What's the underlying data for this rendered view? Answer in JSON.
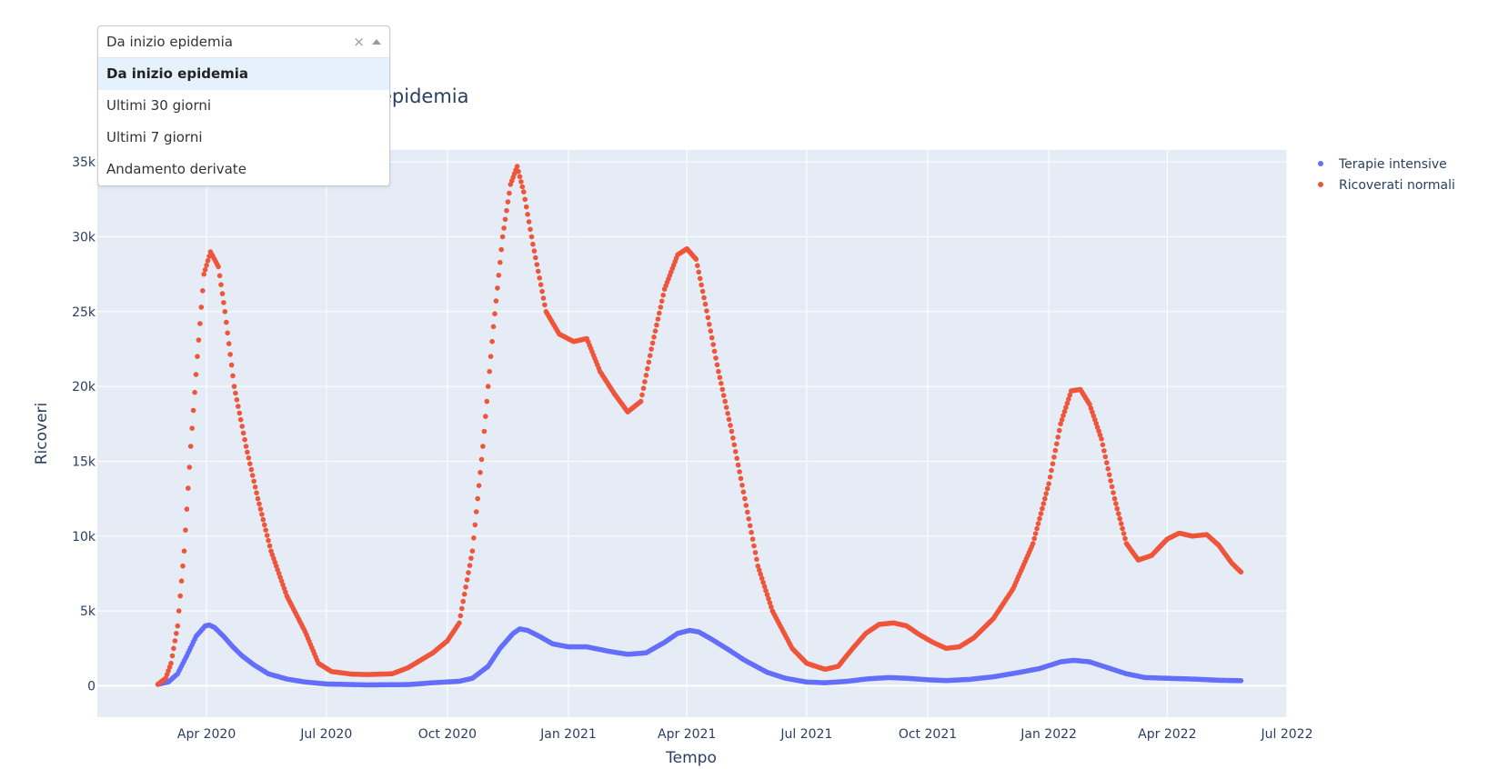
{
  "dropdown": {
    "value": "Da inizio epidemia",
    "clear_glyph": "×",
    "options": [
      "Da inizio epidemia",
      "Ultimi 30 giorni",
      "Ultimi 7 giorni",
      "Andamento derivate"
    ],
    "selected_index": 0
  },
  "chart_data": {
    "type": "scatter",
    "title": "epidemia",
    "xlabel": "Tempo",
    "ylabel": "Ricoveri",
    "x_range": [
      "2020-01-09",
      "2022-07-01"
    ],
    "ylim": [
      -2100,
      35800
    ],
    "x_ticks": [
      {
        "date": "2020-04-01",
        "label": "Apr 2020"
      },
      {
        "date": "2020-07-01",
        "label": "Jul 2020"
      },
      {
        "date": "2020-10-01",
        "label": "Oct 2020"
      },
      {
        "date": "2021-01-01",
        "label": "Jan 2021"
      },
      {
        "date": "2021-04-01",
        "label": "Apr 2021"
      },
      {
        "date": "2021-07-01",
        "label": "Jul 2021"
      },
      {
        "date": "2021-10-01",
        "label": "Oct 2021"
      },
      {
        "date": "2022-01-01",
        "label": "Jan 2022"
      },
      {
        "date": "2022-04-01",
        "label": "Apr 2022"
      },
      {
        "date": "2022-07-01",
        "label": "Jul 2022"
      }
    ],
    "y_ticks": [
      {
        "value": 0,
        "label": "0"
      },
      {
        "value": 5000,
        "label": "5k"
      },
      {
        "value": 10000,
        "label": "10k"
      },
      {
        "value": 15000,
        "label": "15k"
      },
      {
        "value": 20000,
        "label": "20k"
      },
      {
        "value": 25000,
        "label": "25k"
      },
      {
        "value": 30000,
        "label": "30k"
      },
      {
        "value": 35000,
        "label": "35k"
      }
    ],
    "grid": true,
    "legend_position": "top-right",
    "series": [
      {
        "name": "Terapie intensive",
        "color": "#636efa",
        "points": [
          [
            "2020-02-24",
            100
          ],
          [
            "2020-03-03",
            250
          ],
          [
            "2020-03-10",
            800
          ],
          [
            "2020-03-17",
            2000
          ],
          [
            "2020-03-24",
            3300
          ],
          [
            "2020-03-31",
            4000
          ],
          [
            "2020-04-03",
            4060
          ],
          [
            "2020-04-07",
            3900
          ],
          [
            "2020-04-14",
            3300
          ],
          [
            "2020-04-21",
            2600
          ],
          [
            "2020-04-28",
            2000
          ],
          [
            "2020-05-07",
            1400
          ],
          [
            "2020-05-18",
            800
          ],
          [
            "2020-06-01",
            450
          ],
          [
            "2020-06-15",
            250
          ],
          [
            "2020-07-01",
            120
          ],
          [
            "2020-08-01",
            60
          ],
          [
            "2020-09-01",
            80
          ],
          [
            "2020-09-20",
            200
          ],
          [
            "2020-10-10",
            300
          ],
          [
            "2020-10-20",
            500
          ],
          [
            "2020-11-01",
            1300
          ],
          [
            "2020-11-10",
            2500
          ],
          [
            "2020-11-20",
            3500
          ],
          [
            "2020-11-25",
            3800
          ],
          [
            "2020-12-01",
            3700
          ],
          [
            "2020-12-10",
            3300
          ],
          [
            "2020-12-20",
            2800
          ],
          [
            "2021-01-01",
            2600
          ],
          [
            "2021-01-15",
            2600
          ],
          [
            "2021-02-01",
            2300
          ],
          [
            "2021-02-15",
            2100
          ],
          [
            "2021-03-01",
            2200
          ],
          [
            "2021-03-15",
            2900
          ],
          [
            "2021-03-25",
            3500
          ],
          [
            "2021-04-03",
            3700
          ],
          [
            "2021-04-10",
            3600
          ],
          [
            "2021-04-20",
            3100
          ],
          [
            "2021-05-01",
            2500
          ],
          [
            "2021-05-15",
            1700
          ],
          [
            "2021-06-01",
            900
          ],
          [
            "2021-06-15",
            500
          ],
          [
            "2021-07-01",
            250
          ],
          [
            "2021-07-15",
            200
          ],
          [
            "2021-08-01",
            300
          ],
          [
            "2021-08-15",
            450
          ],
          [
            "2021-09-01",
            550
          ],
          [
            "2021-09-15",
            500
          ],
          [
            "2021-10-01",
            400
          ],
          [
            "2021-10-15",
            350
          ],
          [
            "2021-11-01",
            420
          ],
          [
            "2021-11-20",
            600
          ],
          [
            "2021-12-10",
            900
          ],
          [
            "2021-12-25",
            1150
          ],
          [
            "2022-01-10",
            1600
          ],
          [
            "2022-01-20",
            1700
          ],
          [
            "2022-02-01",
            1600
          ],
          [
            "2022-02-15",
            1200
          ],
          [
            "2022-03-01",
            800
          ],
          [
            "2022-03-15",
            550
          ],
          [
            "2022-04-01",
            500
          ],
          [
            "2022-04-20",
            450
          ],
          [
            "2022-05-10",
            370
          ],
          [
            "2022-05-27",
            340
          ]
        ]
      },
      {
        "name": "Ricoverati normali",
        "color": "#ef553b",
        "points": [
          [
            "2020-02-24",
            100
          ],
          [
            "2020-03-01",
            500
          ],
          [
            "2020-03-05",
            1500
          ],
          [
            "2020-03-10",
            4000
          ],
          [
            "2020-03-15",
            9000
          ],
          [
            "2020-03-20",
            16000
          ],
          [
            "2020-03-25",
            22000
          ],
          [
            "2020-03-30",
            27500
          ],
          [
            "2020-04-04",
            29000
          ],
          [
            "2020-04-10",
            28000
          ],
          [
            "2020-04-15",
            25000
          ],
          [
            "2020-04-22",
            20000
          ],
          [
            "2020-05-01",
            16000
          ],
          [
            "2020-05-10",
            12500
          ],
          [
            "2020-05-20",
            9000
          ],
          [
            "2020-06-01",
            6000
          ],
          [
            "2020-06-15",
            3600
          ],
          [
            "2020-06-25",
            1500
          ],
          [
            "2020-07-05",
            950
          ],
          [
            "2020-07-20",
            780
          ],
          [
            "2020-08-01",
            750
          ],
          [
            "2020-08-20",
            800
          ],
          [
            "2020-09-01",
            1200
          ],
          [
            "2020-09-20",
            2200
          ],
          [
            "2020-10-01",
            3000
          ],
          [
            "2020-10-10",
            4200
          ],
          [
            "2020-10-20",
            9000
          ],
          [
            "2020-10-28",
            16000
          ],
          [
            "2020-11-05",
            24000
          ],
          [
            "2020-11-12",
            30000
          ],
          [
            "2020-11-18",
            33500
          ],
          [
            "2020-11-23",
            34700
          ],
          [
            "2020-11-28",
            33000
          ],
          [
            "2020-12-05",
            29500
          ],
          [
            "2020-12-15",
            25000
          ],
          [
            "2020-12-25",
            23500
          ],
          [
            "2021-01-05",
            23000
          ],
          [
            "2021-01-15",
            23200
          ],
          [
            "2021-01-25",
            21000
          ],
          [
            "2021-02-05",
            19500
          ],
          [
            "2021-02-15",
            18300
          ],
          [
            "2021-02-25",
            19000
          ],
          [
            "2021-03-05",
            22500
          ],
          [
            "2021-03-15",
            26500
          ],
          [
            "2021-03-25",
            28800
          ],
          [
            "2021-04-01",
            29200
          ],
          [
            "2021-04-08",
            28500
          ],
          [
            "2021-04-15",
            25500
          ],
          [
            "2021-04-25",
            21000
          ],
          [
            "2021-05-05",
            17000
          ],
          [
            "2021-05-15",
            12500
          ],
          [
            "2021-05-25",
            8000
          ],
          [
            "2021-06-05",
            5000
          ],
          [
            "2021-06-20",
            2500
          ],
          [
            "2021-07-01",
            1500
          ],
          [
            "2021-07-15",
            1100
          ],
          [
            "2021-07-25",
            1300
          ],
          [
            "2021-08-05",
            2500
          ],
          [
            "2021-08-15",
            3500
          ],
          [
            "2021-08-25",
            4100
          ],
          [
            "2021-09-05",
            4200
          ],
          [
            "2021-09-15",
            4000
          ],
          [
            "2021-09-25",
            3400
          ],
          [
            "2021-10-05",
            2900
          ],
          [
            "2021-10-15",
            2500
          ],
          [
            "2021-10-25",
            2600
          ],
          [
            "2021-11-05",
            3200
          ],
          [
            "2021-11-20",
            4500
          ],
          [
            "2021-12-05",
            6500
          ],
          [
            "2021-12-20",
            9500
          ],
          [
            "2022-01-01",
            13500
          ],
          [
            "2022-01-10",
            17500
          ],
          [
            "2022-01-18",
            19700
          ],
          [
            "2022-01-25",
            19800
          ],
          [
            "2022-02-01",
            18800
          ],
          [
            "2022-02-10",
            16500
          ],
          [
            "2022-02-20",
            12500
          ],
          [
            "2022-03-01",
            9500
          ],
          [
            "2022-03-10",
            8400
          ],
          [
            "2022-03-20",
            8700
          ],
          [
            "2022-04-01",
            9800
          ],
          [
            "2022-04-10",
            10200
          ],
          [
            "2022-04-20",
            10000
          ],
          [
            "2022-05-01",
            10100
          ],
          [
            "2022-05-10",
            9400
          ],
          [
            "2022-05-20",
            8200
          ],
          [
            "2022-05-27",
            7600
          ]
        ]
      }
    ]
  }
}
